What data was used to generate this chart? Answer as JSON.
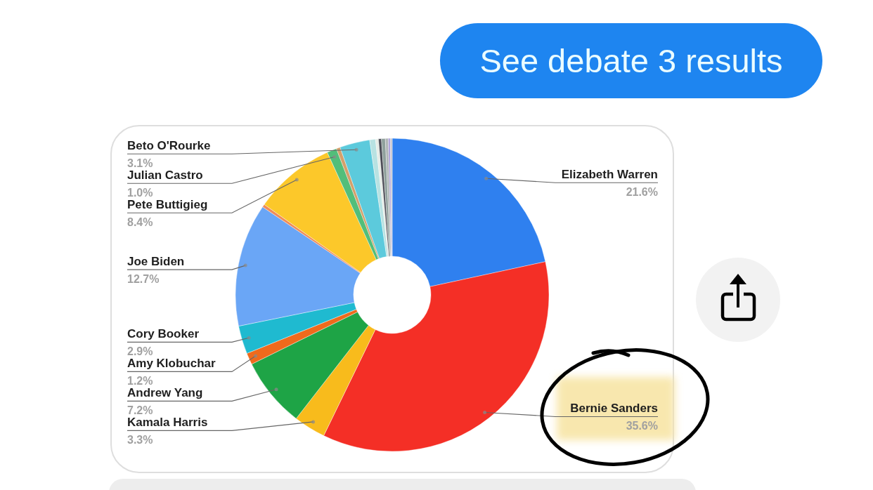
{
  "chart_data": {
    "type": "donut",
    "annotations": [
      "See debate 3 results"
    ],
    "categories": [
      "Elizabeth Warren",
      "Bernie Sanders",
      "Kamala Harris",
      "Andrew Yang",
      "Amy Klobuchar",
      "Cory Booker",
      "Joe Biden",
      null,
      "Pete Buttigieg",
      "Julian Castro",
      null,
      "Beto O'Rourke",
      null,
      null,
      null,
      null,
      null,
      null,
      null
    ],
    "values": [
      21.6,
      35.6,
      3.3,
      7.2,
      1.2,
      2.9,
      12.7,
      0.3,
      8.4,
      1.0,
      0.4,
      3.1,
      0.6,
      0.3,
      0.3,
      0.4,
      0.3,
      0.2,
      0.2
    ],
    "colors": [
      "#2f80ef",
      "#f42f26",
      "#f8bb1c",
      "#1ea446",
      "#ef6a1c",
      "#1fbad0",
      "#6aa6f6",
      "#ef8c5a",
      "#fcc82a",
      "#52be7a",
      "#d4a06b",
      "#5ccadc",
      "#b8e2e2",
      "#e6ece6",
      "#4c4c56",
      "#8fa09c",
      "#b0b6b6",
      "#a79ad8",
      "#c8c8d0"
    ],
    "value_labels": [
      "21.6%",
      "35.6%",
      "3.3%",
      "7.2%",
      "1.2%",
      "2.9%",
      "12.7%",
      null,
      "8.4%",
      "1.0%",
      null,
      "3.1%",
      null,
      null,
      null,
      null,
      null,
      null,
      null
    ]
  }
}
